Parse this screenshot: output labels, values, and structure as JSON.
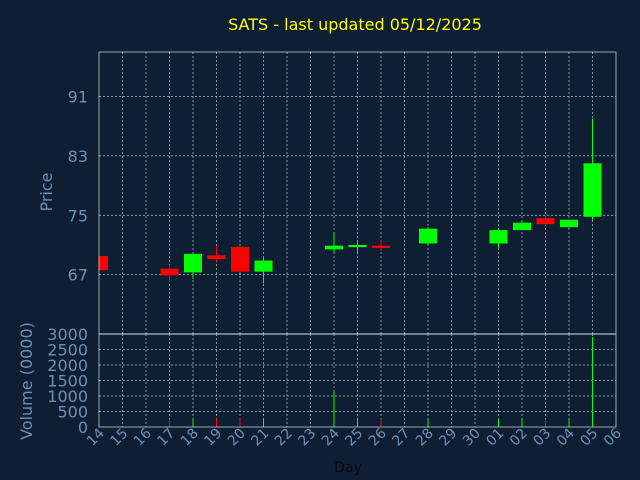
{
  "chart_data": {
    "type": "candlestick",
    "title": "SATS - last updated 05/12/2025",
    "xlabel": "Day",
    "ylabel": "Price",
    "volume_label": "Volume (0000)",
    "grid": true,
    "x": [
      "14",
      "15",
      "16",
      "17",
      "18",
      "19",
      "20",
      "21",
      "22",
      "23",
      "24",
      "25",
      "26",
      "27",
      "28",
      "29",
      "30",
      "01",
      "02",
      "03",
      "04",
      "05",
      "06"
    ],
    "price_ticks": [
      67,
      75,
      83,
      91
    ],
    "price_range": [
      59,
      97
    ],
    "volume_ticks": [
      0,
      500,
      1000,
      1500,
      2000,
      2500,
      3000
    ],
    "volume_range": [
      0,
      3000
    ],
    "candles": [
      {
        "day": "14",
        "open": 69.5,
        "close": 67.6,
        "high": 69.5,
        "low": 67.6,
        "volume": 20
      },
      {
        "day": "17",
        "open": 67.8,
        "close": 66.9,
        "high": 68.3,
        "low": 66.0,
        "volume": 260
      },
      {
        "day": "18",
        "open": 67.3,
        "close": 69.8,
        "high": 69.8,
        "low": 66.4,
        "volume": 300
      },
      {
        "day": "19",
        "open": 69.6,
        "close": 69.1,
        "high": 70.8,
        "low": 68.6,
        "volume": 280
      },
      {
        "day": "20",
        "open": 70.7,
        "close": 67.4,
        "high": 70.7,
        "low": 67.4,
        "volume": 270
      },
      {
        "day": "21",
        "open": 67.4,
        "close": 68.9,
        "high": 69.3,
        "low": 65.8,
        "volume": 250
      },
      {
        "day": "24",
        "open": 70.4,
        "close": 70.9,
        "high": 72.6,
        "low": 69.9,
        "volume": 1150
      },
      {
        "day": "25",
        "open": 70.7,
        "close": 71.0,
        "high": 71.6,
        "low": 69.8,
        "volume": 280
      },
      {
        "day": "26",
        "open": 70.9,
        "close": 70.6,
        "high": 71.6,
        "low": 70.2,
        "volume": 250
      },
      {
        "day": "28",
        "open": 71.2,
        "close": 73.2,
        "high": 73.4,
        "low": 71.0,
        "volume": 230
      },
      {
        "day": "01",
        "open": 71.2,
        "close": 73.0,
        "high": 73.2,
        "low": 70.6,
        "volume": 240
      },
      {
        "day": "02",
        "open": 73.0,
        "close": 74.0,
        "high": 74.2,
        "low": 73.0,
        "volume": 270
      },
      {
        "day": "03",
        "open": 74.6,
        "close": 73.8,
        "high": 75.0,
        "low": 73.7,
        "volume": 260
      },
      {
        "day": "04",
        "open": 73.4,
        "close": 74.4,
        "high": 74.4,
        "low": 73.3,
        "volume": 250
      },
      {
        "day": "05",
        "open": 74.8,
        "close": 82.0,
        "high": 88.0,
        "low": 74.4,
        "volume": 2900
      }
    ],
    "colors": {
      "background": "#0f1f33",
      "text": "#6f8fb3",
      "title": "#ffff00",
      "grid": "#b7c3d0",
      "up": "#00ff00",
      "down": "#ff0000",
      "frame": "#ffffff"
    }
  }
}
